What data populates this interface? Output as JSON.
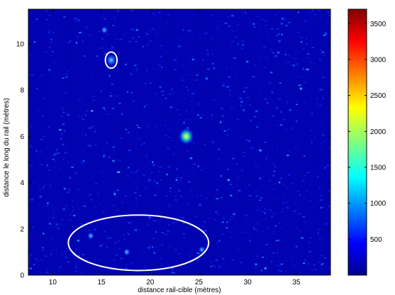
{
  "chart_data": {
    "type": "heatmap",
    "xlabel": "distance rail-cible (mètres)",
    "ylabel": "distance le long du rail (mètres)",
    "xlim": [
      7.5,
      38.5
    ],
    "ylim": [
      0,
      11.5
    ],
    "xticks": [
      10,
      15,
      20,
      25,
      30,
      35
    ],
    "yticks": [
      0,
      2,
      4,
      6,
      8,
      10
    ],
    "colorbar": {
      "ticks": [
        500,
        1000,
        1500,
        2000,
        2500,
        3000,
        3500
      ],
      "range": [
        0,
        3700
      ],
      "colormap": "jet"
    },
    "background_level": 100,
    "hotspots": [
      {
        "x": 23.7,
        "y": 6.0,
        "value": 2300
      },
      {
        "x": 16.0,
        "y": 9.3,
        "value": 1300
      },
      {
        "x": 25.3,
        "y": 1.1,
        "value": 900
      },
      {
        "x": 13.9,
        "y": 1.7,
        "value": 800
      },
      {
        "x": 17.6,
        "y": 1.0,
        "value": 750
      },
      {
        "x": 15.3,
        "y": 10.6,
        "value": 700
      }
    ],
    "annotations": [
      {
        "shape": "circle",
        "x": 16.0,
        "y": 9.3,
        "rx": 0.6,
        "ry": 0.35,
        "color": "#ffffff"
      },
      {
        "shape": "ellipse",
        "x": 18.8,
        "y": 1.4,
        "rx": 7.2,
        "ry": 1.2,
        "color": "#ffffff"
      }
    ],
    "grid": false
  }
}
